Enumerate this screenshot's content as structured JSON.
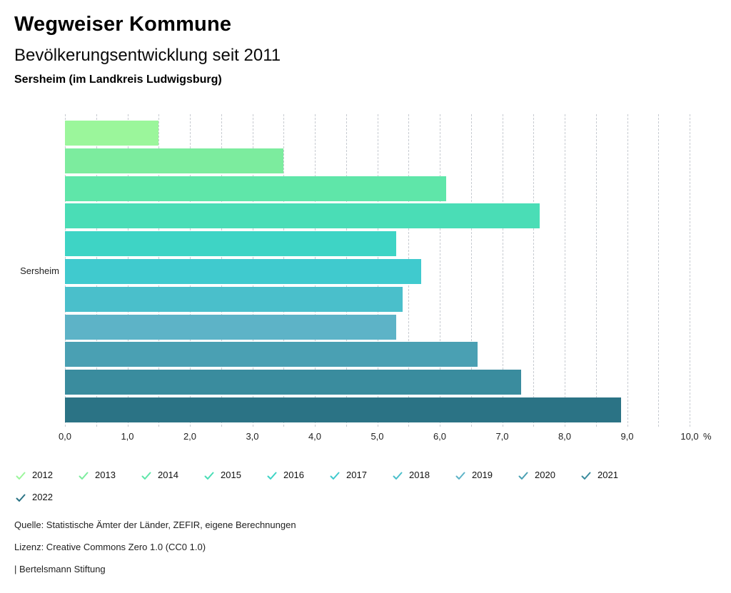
{
  "header": {
    "title": "Wegweiser Kommune",
    "subtitle": "Bevölkerungsentwicklung seit 2011",
    "location": "Sersheim (im Landkreis Ludwigsburg)"
  },
  "chart_data": {
    "type": "bar",
    "orientation": "horizontal",
    "title": "Bevölkerungsentwicklung seit 2011",
    "categories": [
      "Sersheim"
    ],
    "series": [
      {
        "name": "2012",
        "value": 1.5,
        "color": "#9BF69B"
      },
      {
        "name": "2013",
        "value": 3.5,
        "color": "#7CEC9E"
      },
      {
        "name": "2014",
        "value": 6.1,
        "color": "#5FE6A9"
      },
      {
        "name": "2015",
        "value": 7.6,
        "color": "#4ADDB6"
      },
      {
        "name": "2016",
        "value": 5.3,
        "color": "#3ED4C5"
      },
      {
        "name": "2017",
        "value": 5.7,
        "color": "#40CACE"
      },
      {
        "name": "2018",
        "value": 5.4,
        "color": "#4ABFCB"
      },
      {
        "name": "2019",
        "value": 5.3,
        "color": "#5DB3C7"
      },
      {
        "name": "2020",
        "value": 6.6,
        "color": "#4AA0B3"
      },
      {
        "name": "2021",
        "value": 7.3,
        "color": "#3A8C9E"
      },
      {
        "name": "2022",
        "value": 8.9,
        "color": "#2B7385"
      }
    ],
    "xlim": [
      0,
      10
    ],
    "x_tick_step": 1.0,
    "x_tick_labels": [
      "0,0",
      "1,0",
      "2,0",
      "3,0",
      "4,0",
      "5,0",
      "6,0",
      "7,0",
      "8,0",
      "9,0",
      "10,0"
    ],
    "x_unit": "%",
    "grid": {
      "vertical_step": 0.5,
      "style": "dashed",
      "color": "#c7cbd1"
    },
    "legend_position": "bottom"
  },
  "footer": {
    "source": "Quelle: Statistische Ämter der Länder, ZEFIR, eigene Berechnungen",
    "license": "Lizenz: Creative Commons Zero 1.0 (CC0 1.0)",
    "attribution": "| Bertelsmann Stiftung"
  }
}
